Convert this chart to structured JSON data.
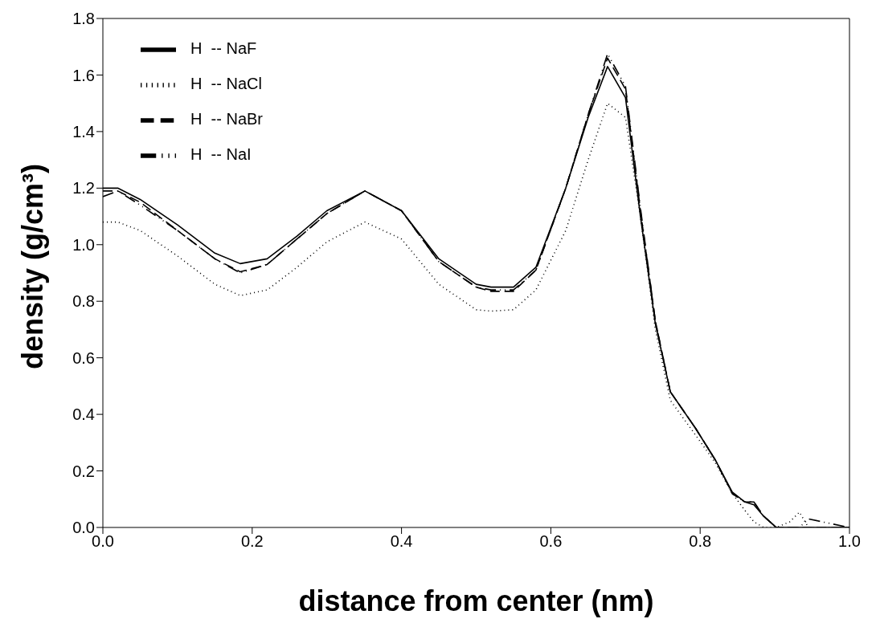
{
  "chart_data": {
    "type": "line",
    "xlabel": "distance from center (nm)",
    "ylabel": "density (g/cm³)",
    "xlim": [
      0,
      1.0
    ],
    "xticks": [
      {
        "value": 0,
        "label": "0.0"
      },
      0.2,
      0.4,
      0.6,
      0.8,
      {
        "value": 1.0,
        "label": "1.0"
      }
    ],
    "ylim": [
      0,
      1.8
    ],
    "yticks": [
      {
        "value": 0,
        "label": "0.0"
      },
      0.2,
      0.4,
      0.6,
      0.8,
      {
        "value": 1.0,
        "label": "1.0"
      },
      1.2,
      1.4,
      1.6,
      1.8
    ],
    "grid": false,
    "legend": "top left",
    "marker": "none",
    "x": [
      0,
      0.02,
      0.05,
      0.1,
      0.15,
      0.184,
      0.22,
      0.26,
      0.3,
      0.351,
      0.4,
      0.45,
      0.5,
      0.52,
      0.55,
      0.58,
      0.62,
      0.65,
      0.676,
      0.7,
      0.72,
      0.74,
      0.76,
      0.794,
      0.82,
      0.843,
      0.86,
      0.872,
      0.885,
      0.902,
      0.92,
      0.933,
      0.945,
      1.0
    ],
    "series": [
      {
        "name": "H  -- NaF",
        "color": "#000000",
        "line_style": "solid",
        "values": [
          1.2,
          1.2,
          1.16,
          1.07,
          0.97,
          0.933,
          0.95,
          1.03,
          1.12,
          1.19,
          1.12,
          0.95,
          0.86,
          0.85,
          0.85,
          0.92,
          1.2,
          1.45,
          1.63,
          1.52,
          1.1,
          0.72,
          0.48,
          0.35,
          0.24,
          0.125,
          0.09,
          0.08,
          0.04,
          0,
          0,
          0,
          0,
          0
        ]
      },
      {
        "name": "H  -- NaCl",
        "color": "#000000",
        "line_style": "dotted",
        "values": [
          1.08,
          1.08,
          1.05,
          0.96,
          0.86,
          0.82,
          0.84,
          0.92,
          1.01,
          1.08,
          1.02,
          0.86,
          0.77,
          0.765,
          0.77,
          0.84,
          1.05,
          1.3,
          1.5,
          1.45,
          1.1,
          0.7,
          0.45,
          0.326,
          0.23,
          0.12,
          0.06,
          0.02,
          0,
          0,
          0.02,
          0.054,
          0,
          0
        ]
      },
      {
        "name": "H  -- NaBr",
        "color": "#000000",
        "line_style": "dashed",
        "values": [
          1.19,
          1.19,
          1.15,
          1.05,
          0.95,
          0.904,
          0.93,
          1.02,
          1.11,
          1.19,
          1.12,
          0.94,
          0.85,
          0.835,
          0.835,
          0.91,
          1.2,
          1.46,
          1.66,
          1.55,
          1.12,
          0.73,
          0.48,
          0.35,
          0.24,
          0.12,
          0.09,
          0.09,
          0.04,
          0,
          0,
          0,
          0,
          0
        ]
      },
      {
        "name": "H  -- NaI",
        "color": "#000000",
        "line_style": "dashdotdot",
        "values": [
          1.17,
          1.19,
          1.14,
          1.05,
          0.95,
          0.9,
          0.93,
          1.02,
          1.11,
          1.19,
          1.12,
          0.94,
          0.85,
          0.84,
          0.84,
          0.91,
          1.2,
          1.46,
          1.675,
          1.56,
          1.13,
          0.73,
          0.48,
          0.35,
          0.24,
          0.12,
          0.09,
          0.09,
          0.04,
          0,
          0,
          0,
          0.03,
          0
        ]
      }
    ]
  }
}
